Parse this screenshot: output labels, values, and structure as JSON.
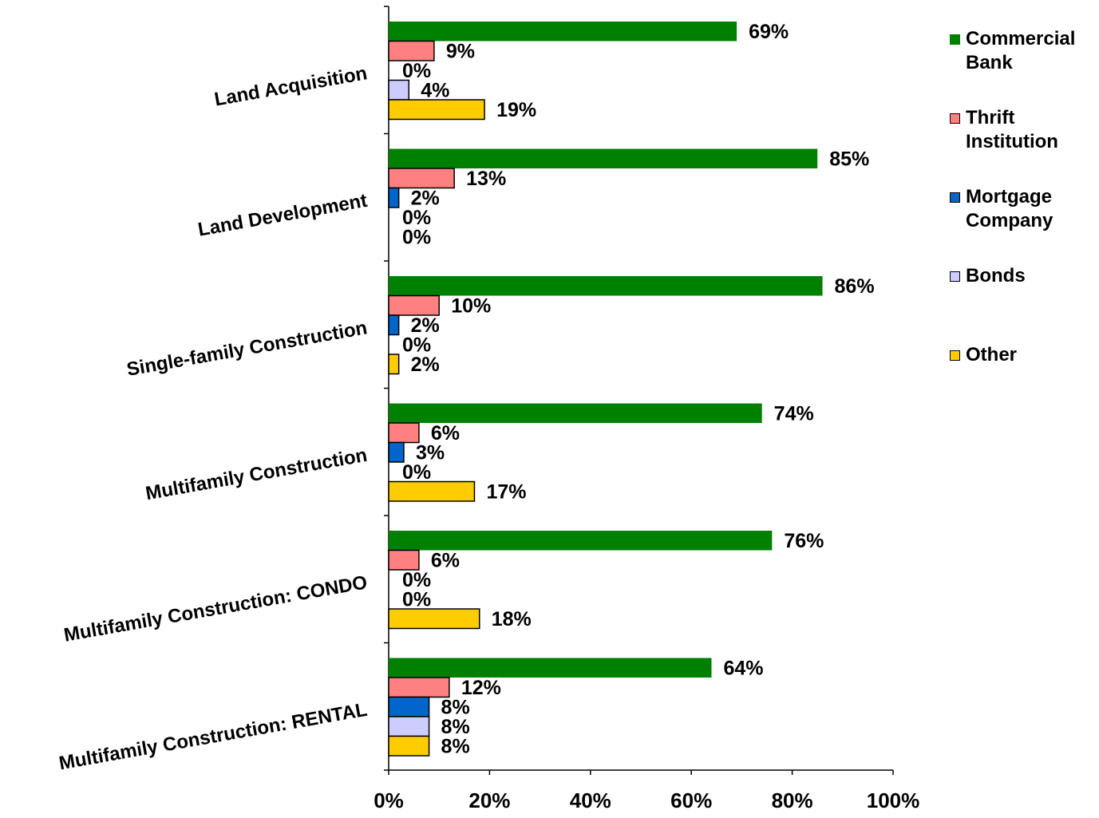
{
  "chart_data": {
    "type": "hbar",
    "categories": [
      "Land Acquisition",
      "Land Development",
      "Single-family Construction",
      "Multifamily Construction",
      "Multifamily Construction: CONDO",
      "Multifamily Construction: RENTAL"
    ],
    "series": [
      {
        "name": "Commercial Bank",
        "color": "#008000",
        "values": [
          69,
          85,
          86,
          74,
          76,
          64
        ],
        "value_labels": [
          "69%",
          "85%",
          "86%",
          "74%",
          "76%",
          "64%"
        ]
      },
      {
        "name": "Thrift Institution",
        "color": "#ff8080",
        "values": [
          9,
          13,
          10,
          6,
          6,
          12
        ],
        "value_labels": [
          "9%",
          "13%",
          "10%",
          "6%",
          "6%",
          "12%"
        ]
      },
      {
        "name": "Mortgage Company",
        "color": "#0066cc",
        "values": [
          0,
          2,
          2,
          3,
          0,
          8
        ],
        "value_labels": [
          "0%",
          "2%",
          "2%",
          "3%",
          "0%",
          "8%"
        ]
      },
      {
        "name": "Bonds",
        "color": "#ccccff",
        "values": [
          4,
          0,
          0,
          0,
          0,
          8
        ],
        "value_labels": [
          "4%",
          "0%",
          "0%",
          "0%",
          "0%",
          "8%"
        ]
      },
      {
        "name": "Other",
        "color": "#ffcc00",
        "values": [
          19,
          0,
          2,
          17,
          18,
          8
        ],
        "value_labels": [
          "19%",
          "0%",
          "2%",
          "17%",
          "18%",
          "8%"
        ]
      }
    ],
    "xlim": [
      0,
      100
    ],
    "xticks": [
      {
        "value": 0,
        "label": "0%"
      },
      {
        "value": 20,
        "label": "20%"
      },
      {
        "value": 40,
        "label": "40%"
      },
      {
        "value": 60,
        "label": "60%"
      },
      {
        "value": 80,
        "label": "80%"
      },
      {
        "value": 100,
        "label": "100%"
      }
    ],
    "legend": "right"
  }
}
